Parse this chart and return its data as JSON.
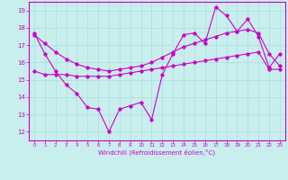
{
  "background_color": "#c8eeee",
  "line_color": "#cc00cc",
  "grid_color": "#aadddd",
  "xlim": [
    -0.5,
    23.5
  ],
  "ylim": [
    11.5,
    19.5
  ],
  "yticks": [
    12,
    13,
    14,
    15,
    16,
    17,
    18,
    19
  ],
  "xticks": [
    0,
    1,
    2,
    3,
    4,
    5,
    6,
    7,
    8,
    9,
    10,
    11,
    12,
    13,
    14,
    15,
    16,
    17,
    18,
    19,
    20,
    21,
    22,
    23
  ],
  "xlabel": "Windchill (Refroidissement éolien,°C)",
  "series1_x": [
    0,
    1,
    2,
    3,
    4,
    5,
    6,
    7,
    8,
    9,
    10,
    11,
    12,
    13,
    14,
    15,
    16,
    17,
    18,
    19,
    20,
    21,
    22,
    23
  ],
  "series1_y": [
    17.7,
    16.5,
    15.5,
    14.7,
    14.2,
    13.4,
    13.3,
    12.0,
    13.3,
    13.5,
    13.7,
    12.7,
    15.3,
    16.5,
    17.6,
    17.7,
    17.1,
    19.2,
    18.7,
    17.8,
    18.5,
    17.5,
    15.7,
    16.5
  ],
  "series2_x": [
    0,
    1,
    2,
    3,
    4,
    5,
    6,
    7,
    8,
    9,
    10,
    11,
    12,
    13,
    14,
    15,
    16,
    17,
    18,
    19,
    20,
    21,
    22,
    23
  ],
  "series2_y": [
    15.5,
    15.3,
    15.3,
    15.3,
    15.2,
    15.2,
    15.2,
    15.2,
    15.3,
    15.4,
    15.5,
    15.6,
    15.7,
    15.8,
    15.9,
    16.0,
    16.1,
    16.2,
    16.3,
    16.4,
    16.5,
    16.6,
    15.6,
    15.6
  ],
  "series3_x": [
    0,
    1,
    2,
    3,
    4,
    5,
    6,
    7,
    8,
    9,
    10,
    11,
    12,
    13,
    14,
    15,
    16,
    17,
    18,
    19,
    20,
    21,
    22,
    23
  ],
  "series3_y": [
    17.6,
    17.1,
    16.6,
    16.2,
    15.9,
    15.7,
    15.6,
    15.5,
    15.6,
    15.7,
    15.8,
    16.0,
    16.3,
    16.6,
    16.9,
    17.1,
    17.3,
    17.5,
    17.7,
    17.8,
    17.9,
    17.7,
    16.5,
    15.8
  ]
}
